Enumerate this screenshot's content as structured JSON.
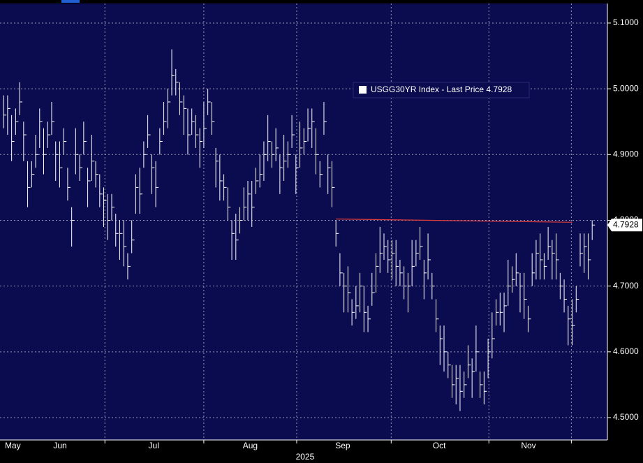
{
  "chart_data": {
    "type": "ohlc",
    "xlabel": "2025",
    "xlim": [
      -0.9,
      150.8
    ],
    "xticks": [
      {
        "value": 2.3,
        "label": "May"
      },
      {
        "value": 14.1,
        "label": "Jun"
      },
      {
        "value": 37.5,
        "label": "Jul"
      },
      {
        "value": 61.6,
        "label": "Aug"
      },
      {
        "value": 84.7,
        "label": "Sep"
      },
      {
        "value": 108.8,
        "label": "Oct"
      },
      {
        "value": 131.1,
        "label": "Nov"
      }
    ],
    "xgrid": [
      25.3,
      50.0,
      73.2,
      96.8,
      121.2,
      141.8
    ],
    "ylim": [
      4.466,
      5.1297
    ],
    "yticks": [
      {
        "value": 4.5,
        "label": "4.5000"
      },
      {
        "value": 4.6,
        "label": "4.6000"
      },
      {
        "value": 4.7,
        "label": "4.7000"
      },
      {
        "value": 4.8,
        "label": "4.8000"
      },
      {
        "value": 4.9,
        "label": "4.9000"
      },
      {
        "value": 5.0,
        "label": "5.0000"
      },
      {
        "value": 5.1,
        "label": "5.1000"
      }
    ],
    "grid": true,
    "trendline": {
      "x": [
        83,
        142
      ],
      "y": [
        4.802,
        4.797
      ],
      "color": "#e03c3c"
    },
    "series": [
      {
        "name": "USGG30YR Index - Last Price",
        "color": "#ffffff",
        "high": [
          4.99,
          4.99,
          4.96,
          4.97,
          5.01,
          4.95,
          4.89,
          4.89,
          4.93,
          4.97,
          4.94,
          4.95,
          4.98,
          4.92,
          4.92,
          4.94,
          4.88,
          4.82,
          4.94,
          4.9,
          4.95,
          4.88,
          4.93,
          4.89,
          4.87,
          4.85,
          4.84,
          4.84,
          4.81,
          4.8,
          4.8,
          4.75,
          4.8,
          4.87,
          4.88,
          4.92,
          4.96,
          4.9,
          4.89,
          4.94,
          4.98,
          5.0,
          5.06,
          5.03,
          5.01,
          4.99,
          4.97,
          4.97,
          4.96,
          4.94,
          4.98,
          5.0,
          4.98,
          4.91,
          4.9,
          4.87,
          4.85,
          4.8,
          4.81,
          4.82,
          4.85,
          4.86,
          4.86,
          4.88,
          4.9,
          4.92,
          4.96,
          4.92,
          4.94,
          4.9,
          4.93,
          4.92,
          4.96,
          4.9,
          4.95,
          4.94,
          4.97,
          4.97,
          4.94,
          4.89,
          4.98,
          4.9,
          4.89,
          4.8,
          4.75,
          4.72,
          4.73,
          4.68,
          4.7,
          4.72,
          4.7,
          4.67,
          4.72,
          4.75,
          4.79,
          4.78,
          4.77,
          4.77,
          4.77,
          4.74,
          4.73,
          4.72,
          4.77,
          4.77,
          4.79,
          4.74,
          4.78,
          4.72,
          4.68,
          4.64,
          4.64,
          4.6,
          4.58,
          4.58,
          4.58,
          4.57,
          4.61,
          4.59,
          4.64,
          4.57,
          4.57,
          4.62,
          4.66,
          4.68,
          4.69,
          4.69,
          4.74,
          4.73,
          4.75,
          4.72,
          4.72,
          4.67,
          4.75,
          4.77,
          4.78,
          4.75,
          4.79,
          4.77,
          4.78,
          4.72,
          4.71,
          4.67,
          4.68,
          4.7,
          4.78,
          4.78,
          4.78,
          4.8
        ],
        "low": [
          4.94,
          4.93,
          4.89,
          4.93,
          4.96,
          4.89,
          4.82,
          4.85,
          4.88,
          4.91,
          4.87,
          4.91,
          4.93,
          4.86,
          4.85,
          4.9,
          4.83,
          4.76,
          4.87,
          4.86,
          4.9,
          4.82,
          4.86,
          4.85,
          4.82,
          4.79,
          4.77,
          4.8,
          4.76,
          4.74,
          4.73,
          4.71,
          4.75,
          4.81,
          4.81,
          4.88,
          4.91,
          4.84,
          4.82,
          4.9,
          4.93,
          4.94,
          4.99,
          4.99,
          4.96,
          4.93,
          4.9,
          4.93,
          4.91,
          4.88,
          4.91,
          4.96,
          4.93,
          4.85,
          4.83,
          4.83,
          4.8,
          4.74,
          4.74,
          4.78,
          4.8,
          4.8,
          4.79,
          4.84,
          4.85,
          4.86,
          4.89,
          4.88,
          4.89,
          4.84,
          4.86,
          4.88,
          4.91,
          4.84,
          4.88,
          4.9,
          4.92,
          4.91,
          4.87,
          4.85,
          4.93,
          4.84,
          4.82,
          4.76,
          4.7,
          4.66,
          4.66,
          4.64,
          4.65,
          4.66,
          4.63,
          4.63,
          4.67,
          4.69,
          4.72,
          4.74,
          4.72,
          4.71,
          4.7,
          4.7,
          4.68,
          4.66,
          4.7,
          4.73,
          4.74,
          4.68,
          4.71,
          4.68,
          4.63,
          4.58,
          4.57,
          4.56,
          4.53,
          4.52,
          4.51,
          4.53,
          4.56,
          4.53,
          4.57,
          4.53,
          4.52,
          4.56,
          4.59,
          4.64,
          4.64,
          4.63,
          4.67,
          4.69,
          4.7,
          4.66,
          4.65,
          4.63,
          4.7,
          4.71,
          4.71,
          4.71,
          4.74,
          4.71,
          4.71,
          4.68,
          4.66,
          4.61,
          4.61,
          4.66,
          4.73,
          4.72,
          4.71,
          4.77
        ],
        "close": [
          4.96,
          4.97,
          4.92,
          4.95,
          4.98,
          4.93,
          4.85,
          4.87,
          4.9,
          4.95,
          4.9,
          4.93,
          4.95,
          4.9,
          4.88,
          4.92,
          4.85,
          4.8,
          4.9,
          4.88,
          4.92,
          4.86,
          4.89,
          4.87,
          4.84,
          4.83,
          4.8,
          4.82,
          4.78,
          4.78,
          4.76,
          4.73,
          4.77,
          4.85,
          4.84,
          4.9,
          4.93,
          4.88,
          4.85,
          4.92,
          4.95,
          4.98,
          5.02,
          5.01,
          4.98,
          4.97,
          4.93,
          4.95,
          4.93,
          4.92,
          4.94,
          4.98,
          4.95,
          4.89,
          4.86,
          4.85,
          4.82,
          4.78,
          4.77,
          4.8,
          4.82,
          4.84,
          4.82,
          4.86,
          4.87,
          4.9,
          4.92,
          4.9,
          4.91,
          4.88,
          4.89,
          4.9,
          4.93,
          4.88,
          4.91,
          4.92,
          4.94,
          4.95,
          4.9,
          4.87,
          4.95,
          4.88,
          4.85,
          4.78,
          4.72,
          4.7,
          4.69,
          4.66,
          4.67,
          4.7,
          4.66,
          4.65,
          4.69,
          4.73,
          4.75,
          4.76,
          4.74,
          4.75,
          4.73,
          4.72,
          4.7,
          4.7,
          4.73,
          4.75,
          4.76,
          4.72,
          4.74,
          4.7,
          4.65,
          4.62,
          4.6,
          4.58,
          4.55,
          4.56,
          4.54,
          4.55,
          4.58,
          4.57,
          4.6,
          4.55,
          4.54,
          4.6,
          4.62,
          4.66,
          4.66,
          4.67,
          4.7,
          4.71,
          4.72,
          4.7,
          4.68,
          4.65,
          4.72,
          4.75,
          4.74,
          4.73,
          4.76,
          4.75,
          4.74,
          4.7,
          4.68,
          4.65,
          4.64,
          4.68,
          4.75,
          4.76,
          4.74,
          4.7928
        ]
      }
    ]
  }
}
